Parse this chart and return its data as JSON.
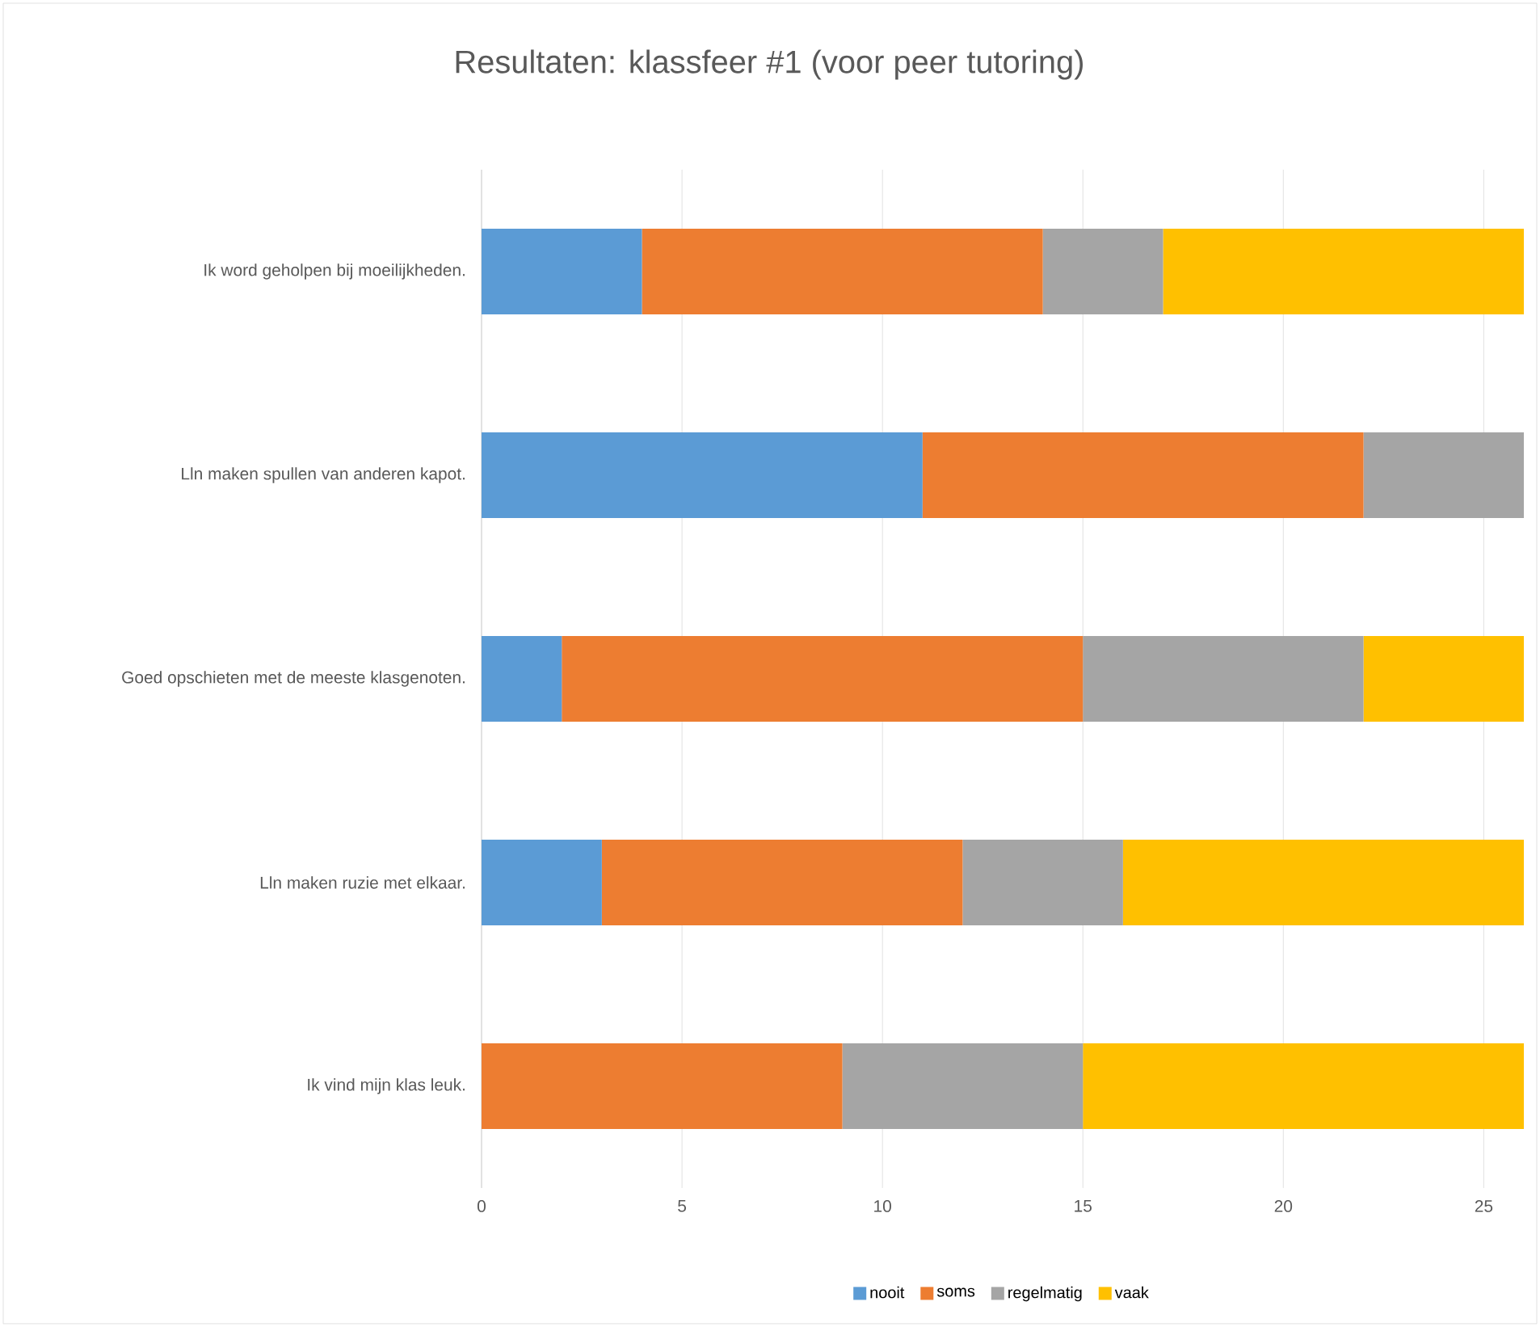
{
  "chart_data": {
    "type": "bar",
    "orientation": "horizontal",
    "stacked": true,
    "title": "Resultaten: klassfeer #1 (voor peer tutoring)",
    "categories": [
      "Ik word geholpen bij moeilijkheden.",
      "Lln maken spullen van anderen kapot.",
      "Goed opschieten met de meeste klasgenoten.",
      "Lln maken ruzie met elkaar.",
      "Ik vind mijn klas leuk."
    ],
    "series": [
      {
        "name": "nooit",
        "color": "#5b9bd5",
        "values": [
          4,
          11,
          2,
          3,
          0
        ]
      },
      {
        "name": "soms",
        "color": "#ed7d31",
        "values": [
          10,
          11,
          13,
          9,
          9
        ]
      },
      {
        "name": "regelmatig",
        "color": "#a5a5a5",
        "values": [
          3,
          4,
          7,
          4,
          6
        ]
      },
      {
        "name": "vaak",
        "color": "#ffc000",
        "values": [
          9,
          null,
          4,
          10,
          11
        ]
      }
    ],
    "xlim": [
      0,
      26
    ],
    "xticks": [
      0,
      5,
      10,
      15,
      20,
      25
    ],
    "grid": "x",
    "legend": "bottom"
  }
}
